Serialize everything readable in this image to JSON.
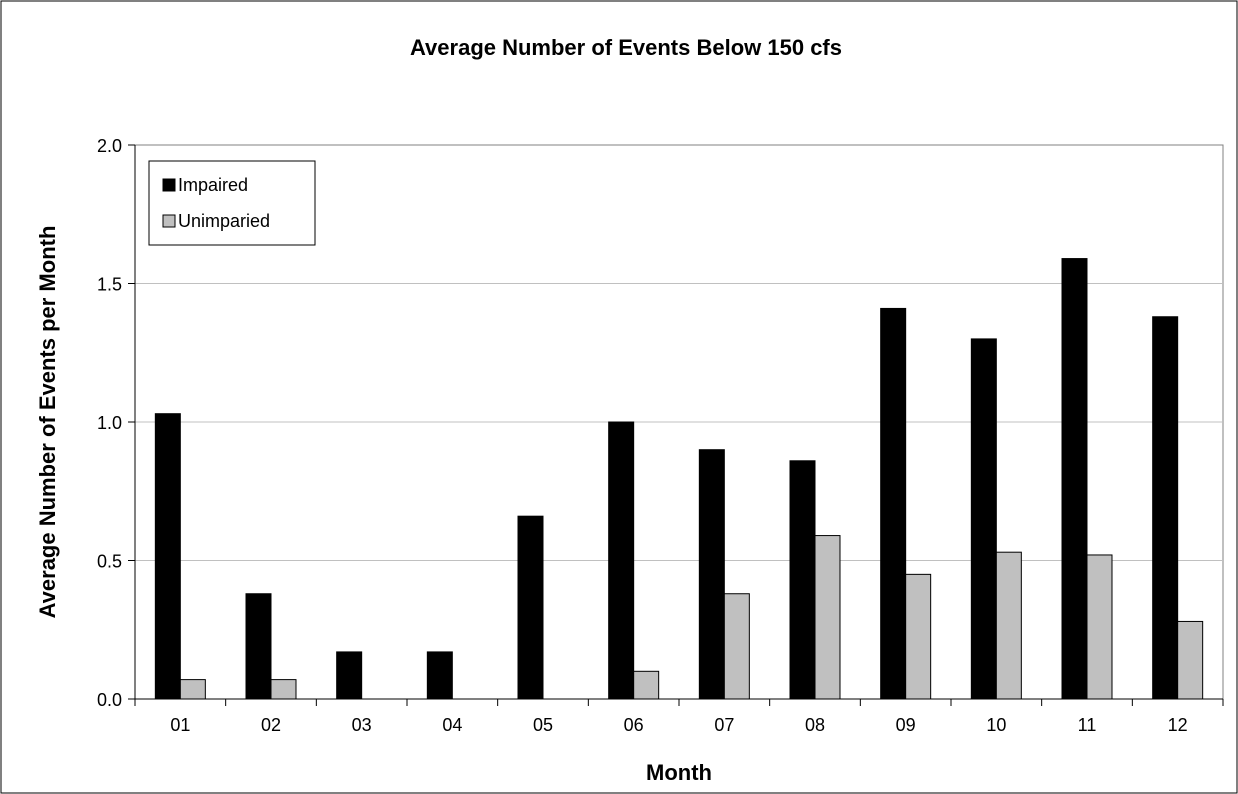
{
  "chart_data": {
    "type": "bar",
    "title": "Average Number of Events Below 150 cfs",
    "xlabel": "Month",
    "ylabel": "Average Number of Events per Month",
    "categories": [
      "01",
      "02",
      "03",
      "04",
      "05",
      "06",
      "07",
      "08",
      "09",
      "10",
      "11",
      "12"
    ],
    "series": [
      {
        "name": "Impaired",
        "color": "#000000",
        "values": [
          1.03,
          0.38,
          0.17,
          0.17,
          0.66,
          1.0,
          0.9,
          0.86,
          1.41,
          1.3,
          1.59,
          1.38
        ]
      },
      {
        "name": "Unimparied",
        "color": "#c0c0c0",
        "values": [
          0.07,
          0.07,
          0.0,
          0.0,
          0.0,
          0.1,
          0.38,
          0.59,
          0.45,
          0.53,
          0.52,
          0.28
        ]
      }
    ],
    "ylim": [
      0,
      2.0
    ],
    "yticks": [
      "0.0",
      "0.5",
      "1.0",
      "1.5",
      "2.0"
    ],
    "grid": true,
    "legend_position": "top-left"
  }
}
